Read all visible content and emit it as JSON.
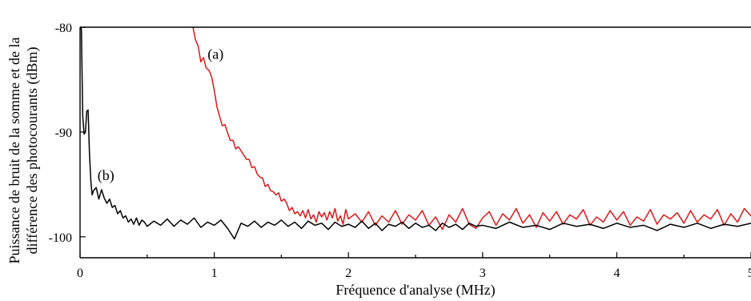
{
  "chart_data": {
    "type": "line",
    "xlabel": "Fréquence d'analyse (MHz)",
    "ylabel_lines": [
      "Puissance de bruit de la somme et de la",
      "différence des photocourants (dBm)"
    ],
    "xlim": [
      0,
      5
    ],
    "ylim": [
      -102,
      -80
    ],
    "x_ticks": [
      0,
      1,
      2,
      3,
      4,
      5
    ],
    "x_tick_labels": [
      "0",
      "1",
      "2",
      "3",
      "4",
      "5"
    ],
    "y_ticks": [
      -80,
      -90,
      -100
    ],
    "y_tick_labels": [
      "-80",
      "-90",
      "-100"
    ],
    "grid": false,
    "top_reference_line": -80,
    "annotations": [
      {
        "text": "(a)",
        "x": 0.95,
        "y": -83
      },
      {
        "text": "(b)",
        "x": 0.13,
        "y": -94.6
      }
    ],
    "series": [
      {
        "label": "(a)",
        "color": "#d7191c",
        "points": [
          [
            0.82,
            -80
          ],
          [
            0.84,
            -79.9
          ],
          [
            0.86,
            -81.2
          ],
          [
            0.88,
            -81.8
          ],
          [
            0.9,
            -83.3
          ],
          [
            0.92,
            -82.9
          ],
          [
            0.94,
            -83.9
          ],
          [
            0.96,
            -84.1
          ],
          [
            0.98,
            -84.7
          ],
          [
            1.0,
            -86.0
          ],
          [
            1.02,
            -87.6
          ],
          [
            1.04,
            -88.5
          ],
          [
            1.06,
            -89.4
          ],
          [
            1.08,
            -89.3
          ],
          [
            1.1,
            -90.1
          ],
          [
            1.12,
            -90.8
          ],
          [
            1.14,
            -90.8
          ],
          [
            1.16,
            -91.6
          ],
          [
            1.18,
            -91.4
          ],
          [
            1.2,
            -91.8
          ],
          [
            1.22,
            -92.2
          ],
          [
            1.24,
            -92.6
          ],
          [
            1.26,
            -92.6
          ],
          [
            1.28,
            -93.4
          ],
          [
            1.3,
            -93.3
          ],
          [
            1.32,
            -94.0
          ],
          [
            1.34,
            -94.3
          ],
          [
            1.36,
            -94.4
          ],
          [
            1.38,
            -95.2
          ],
          [
            1.4,
            -95.0
          ],
          [
            1.42,
            -95.6
          ],
          [
            1.44,
            -95.7
          ],
          [
            1.46,
            -96.0
          ],
          [
            1.48,
            -95.8
          ],
          [
            1.5,
            -96.6
          ],
          [
            1.52,
            -96.4
          ],
          [
            1.54,
            -96.8
          ],
          [
            1.56,
            -97.5
          ],
          [
            1.58,
            -97.2
          ],
          [
            1.6,
            -97.8
          ],
          [
            1.62,
            -97.6
          ],
          [
            1.64,
            -98.0
          ],
          [
            1.66,
            -97.5
          ],
          [
            1.68,
            -98.2
          ],
          [
            1.7,
            -97.4
          ],
          [
            1.72,
            -98.3
          ],
          [
            1.74,
            -97.9
          ],
          [
            1.76,
            -98.6
          ],
          [
            1.78,
            -97.6
          ],
          [
            1.8,
            -98.1
          ],
          [
            1.82,
            -97.7
          ],
          [
            1.84,
            -98.4
          ],
          [
            1.86,
            -97.6
          ],
          [
            1.88,
            -98.2
          ],
          [
            1.9,
            -97.3
          ],
          [
            1.92,
            -98.5
          ],
          [
            1.94,
            -98.0
          ],
          [
            1.96,
            -98.8
          ],
          [
            1.98,
            -97.4
          ],
          [
            2.0,
            -98.3
          ],
          [
            2.05,
            -97.8
          ],
          [
            2.1,
            -98.6
          ],
          [
            2.15,
            -97.6
          ],
          [
            2.2,
            -98.9
          ],
          [
            2.25,
            -98.0
          ],
          [
            2.3,
            -98.6
          ],
          [
            2.35,
            -97.5
          ],
          [
            2.4,
            -98.8
          ],
          [
            2.45,
            -97.9
          ],
          [
            2.5,
            -98.4
          ],
          [
            2.55,
            -97.5
          ],
          [
            2.6,
            -98.9
          ],
          [
            2.65,
            -98.1
          ],
          [
            2.7,
            -99.3
          ],
          [
            2.75,
            -97.9
          ],
          [
            2.8,
            -98.6
          ],
          [
            2.85,
            -97.3
          ],
          [
            2.9,
            -98.8
          ],
          [
            2.95,
            -99.2
          ],
          [
            3.0,
            -98.2
          ],
          [
            3.05,
            -97.6
          ],
          [
            3.1,
            -98.9
          ],
          [
            3.15,
            -97.8
          ],
          [
            3.2,
            -98.4
          ],
          [
            3.25,
            -97.3
          ],
          [
            3.3,
            -98.7
          ],
          [
            3.35,
            -97.9
          ],
          [
            3.4,
            -99.1
          ],
          [
            3.45,
            -97.7
          ],
          [
            3.5,
            -98.5
          ],
          [
            3.55,
            -97.6
          ],
          [
            3.6,
            -98.8
          ],
          [
            3.65,
            -97.9
          ],
          [
            3.7,
            -98.3
          ],
          [
            3.75,
            -97.4
          ],
          [
            3.8,
            -98.9
          ],
          [
            3.85,
            -98.1
          ],
          [
            3.9,
            -98.6
          ],
          [
            3.95,
            -97.5
          ],
          [
            4.0,
            -98.4
          ],
          [
            4.05,
            -97.6
          ],
          [
            4.1,
            -98.9
          ],
          [
            4.15,
            -98.1
          ],
          [
            4.2,
            -98.5
          ],
          [
            4.25,
            -97.4
          ],
          [
            4.3,
            -98.8
          ],
          [
            4.35,
            -97.9
          ],
          [
            4.4,
            -98.3
          ],
          [
            4.45,
            -97.7
          ],
          [
            4.5,
            -98.7
          ],
          [
            4.55,
            -97.5
          ],
          [
            4.6,
            -98.6
          ],
          [
            4.65,
            -97.9
          ],
          [
            4.7,
            -98.3
          ],
          [
            4.75,
            -97.4
          ],
          [
            4.8,
            -98.9
          ],
          [
            4.85,
            -97.8
          ],
          [
            4.9,
            -98.6
          ],
          [
            4.95,
            -97.3
          ],
          [
            5.0,
            -98.0
          ]
        ]
      },
      {
        "label": "(b)",
        "color": "#000000",
        "points": [
          [
            0.0,
            -79.8
          ],
          [
            0.01,
            -80.2
          ],
          [
            0.02,
            -88.5
          ],
          [
            0.03,
            -90.2
          ],
          [
            0.04,
            -90.0
          ],
          [
            0.05,
            -88.0
          ],
          [
            0.06,
            -87.9
          ],
          [
            0.07,
            -92.0
          ],
          [
            0.08,
            -94.6
          ],
          [
            0.09,
            -96.0
          ],
          [
            0.1,
            -95.6
          ],
          [
            0.12,
            -95.3
          ],
          [
            0.14,
            -96.4
          ],
          [
            0.16,
            -95.5
          ],
          [
            0.18,
            -96.3
          ],
          [
            0.2,
            -96.8
          ],
          [
            0.22,
            -96.4
          ],
          [
            0.24,
            -97.2
          ],
          [
            0.26,
            -97.0
          ],
          [
            0.28,
            -97.8
          ],
          [
            0.3,
            -97.5
          ],
          [
            0.32,
            -98.2
          ],
          [
            0.34,
            -98.0
          ],
          [
            0.36,
            -98.6
          ],
          [
            0.38,
            -98.3
          ],
          [
            0.4,
            -98.8
          ],
          [
            0.42,
            -98.2
          ],
          [
            0.44,
            -98.9
          ],
          [
            0.46,
            -98.4
          ],
          [
            0.48,
            -98.6
          ],
          [
            0.5,
            -99.0
          ],
          [
            0.55,
            -98.5
          ],
          [
            0.6,
            -98.9
          ],
          [
            0.65,
            -98.3
          ],
          [
            0.7,
            -99.0
          ],
          [
            0.75,
            -98.4
          ],
          [
            0.8,
            -98.8
          ],
          [
            0.85,
            -98.2
          ],
          [
            0.9,
            -99.1
          ],
          [
            0.95,
            -98.6
          ],
          [
            1.0,
            -98.9
          ],
          [
            1.05,
            -98.4
          ],
          [
            1.1,
            -99.2
          ],
          [
            1.15,
            -100.2
          ],
          [
            1.2,
            -98.7
          ],
          [
            1.25,
            -99.0
          ],
          [
            1.3,
            -98.5
          ],
          [
            1.35,
            -99.1
          ],
          [
            1.4,
            -98.6
          ],
          [
            1.45,
            -98.9
          ],
          [
            1.5,
            -98.4
          ],
          [
            1.55,
            -99.0
          ],
          [
            1.6,
            -98.6
          ],
          [
            1.65,
            -99.2
          ],
          [
            1.7,
            -98.5
          ],
          [
            1.75,
            -98.9
          ],
          [
            1.8,
            -98.7
          ],
          [
            1.85,
            -99.3
          ],
          [
            1.9,
            -98.6
          ],
          [
            1.95,
            -99.0
          ],
          [
            2.0,
            -98.8
          ],
          [
            2.05,
            -99.1
          ],
          [
            2.1,
            -98.5
          ],
          [
            2.15,
            -99.2
          ],
          [
            2.2,
            -98.7
          ],
          [
            2.25,
            -99.4
          ],
          [
            2.3,
            -98.8
          ],
          [
            2.35,
            -99.0
          ],
          [
            2.4,
            -98.6
          ],
          [
            2.45,
            -99.2
          ],
          [
            2.5,
            -98.7
          ],
          [
            2.55,
            -99.1
          ],
          [
            2.6,
            -98.9
          ],
          [
            2.65,
            -99.4
          ],
          [
            2.7,
            -98.7
          ],
          [
            2.75,
            -99.1
          ],
          [
            2.8,
            -98.8
          ],
          [
            2.85,
            -99.3
          ],
          [
            2.9,
            -98.7
          ],
          [
            2.95,
            -99.0
          ],
          [
            3.0,
            -98.9
          ],
          [
            3.1,
            -99.2
          ],
          [
            3.2,
            -98.6
          ],
          [
            3.3,
            -99.1
          ],
          [
            3.4,
            -98.9
          ],
          [
            3.5,
            -99.3
          ],
          [
            3.6,
            -98.7
          ],
          [
            3.7,
            -99.0
          ],
          [
            3.8,
            -98.8
          ],
          [
            3.9,
            -99.2
          ],
          [
            4.0,
            -98.7
          ],
          [
            4.1,
            -99.1
          ],
          [
            4.2,
            -98.9
          ],
          [
            4.3,
            -99.4
          ],
          [
            4.4,
            -98.8
          ],
          [
            4.5,
            -99.1
          ],
          [
            4.6,
            -98.7
          ],
          [
            4.7,
            -99.2
          ],
          [
            4.8,
            -98.8
          ],
          [
            4.9,
            -99.0
          ],
          [
            5.0,
            -98.7
          ]
        ]
      }
    ]
  }
}
